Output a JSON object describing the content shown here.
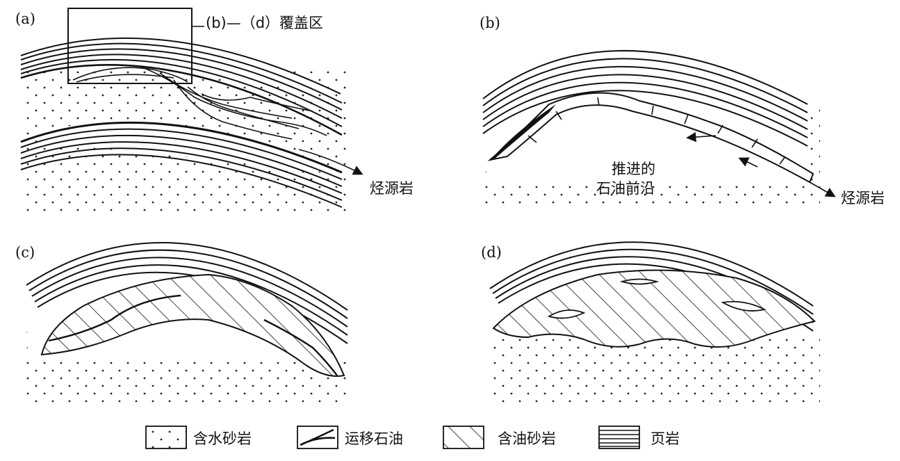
{
  "panels": {
    "a": {
      "label": "(a)",
      "callout": "(b)—（d）覆盖区",
      "source_rock": "烃源岩"
    },
    "b": {
      "label": "(b)",
      "front_line1": "推进的",
      "front_line2": "石油前沿",
      "source_rock": "烃源岩"
    },
    "c": {
      "label": "(c)"
    },
    "d": {
      "label": "(d)"
    }
  },
  "legend": [
    {
      "id": "water-sandstone",
      "label": "含水砂岩"
    },
    {
      "id": "migrating-oil",
      "label": "运移石油"
    },
    {
      "id": "oil-sandstone",
      "label": "含油砂岩"
    },
    {
      "id": "shale",
      "label": "页岩"
    }
  ]
}
